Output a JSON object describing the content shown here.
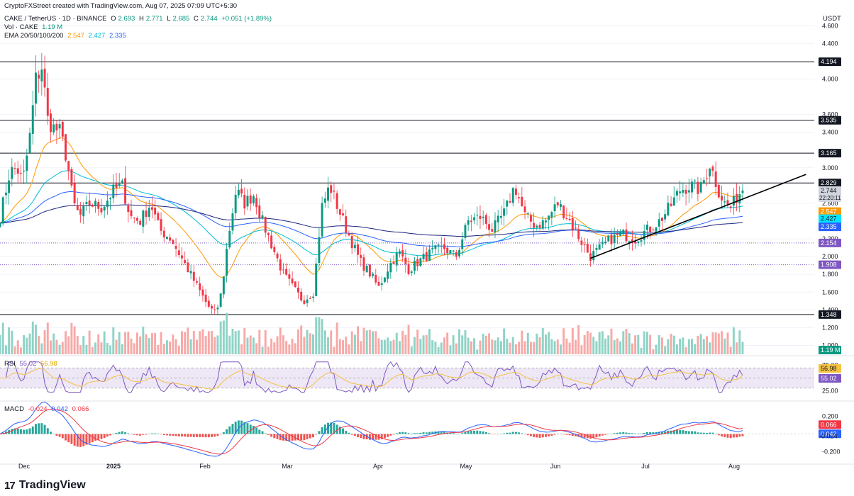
{
  "header": {
    "credit": "CryptoFXStreet created with TradingView.com, Aug 07, 2025 07:09 UTC+5:30",
    "symbol": "CAKE / TetherUS · 1D · BINANCE",
    "open_label": "O",
    "open": "2.693",
    "high_label": "H",
    "high": "2.771",
    "low_label": "L",
    "low": "2.685",
    "close_label": "C",
    "close": "2.744",
    "change": "+0.051 (+1.89%)",
    "vol_label": "Vol · CAKE",
    "vol_value": "1.19 M",
    "ema_label": "EMA 20/50/100/200",
    "ema20": "2.547",
    "ema50": "2.427",
    "ema100": "2.335"
  },
  "quote_unit": "USDT",
  "rsi_panel": {
    "label": "RSI",
    "value": "55.02",
    "ma_value": "56.98"
  },
  "macd_panel": {
    "label": "MACD",
    "hist": "-0.024",
    "macd": "0.042",
    "signal": "0.066"
  },
  "footer": {
    "brand": "TradingView",
    "logo": "17"
  },
  "colors": {
    "up": "#089981",
    "down": "#f23645",
    "ema20": "#ff9800",
    "ema50": "#00bcd4",
    "ema100": "#2962ff",
    "ema200": "#1a237e",
    "rsi": "#7e57c2",
    "rsi_ma": "#f5c242",
    "macd": "#2962ff",
    "signal": "#f23645"
  },
  "chart_data": [
    {
      "type": "candlestick",
      "title": "CAKE / TetherUS · 1D · BINANCE",
      "x_tick_labels": [
        "Dec",
        "2025",
        "Feb",
        "Mar",
        "Apr",
        "May",
        "Jun",
        "Jul",
        "Aug"
      ],
      "y_tick_labels": [
        "4.600",
        "4.400",
        "4.000",
        "3.600",
        "3.400",
        "3.000",
        "2.600",
        "2.200",
        "2.000",
        "1.800",
        "1.600",
        "1.400",
        "1.200",
        "1.000"
      ],
      "y_range": [
        0.9,
        4.65
      ],
      "price_levels": [
        {
          "label": "4.194",
          "value": 4.194,
          "style": "solid",
          "color": "#131722"
        },
        {
          "label": "3.535",
          "value": 3.535,
          "style": "solid",
          "color": "#131722"
        },
        {
          "label": "3.165",
          "value": 3.165,
          "style": "solid",
          "color": "#131722"
        },
        {
          "label": "2.829",
          "value": 2.829,
          "style": "solid",
          "color": "#131722"
        },
        {
          "label": "2.154",
          "value": 2.154,
          "style": "dotted",
          "color": "#7e57c2"
        },
        {
          "label": "1.908",
          "value": 1.908,
          "style": "dotted",
          "color": "#7e57c2"
        },
        {
          "label": "1.348",
          "value": 1.348,
          "style": "solid",
          "color": "#131722"
        }
      ],
      "current_price_tag": {
        "label": "2.744",
        "countdown": "22:20:11"
      },
      "ema_tags": [
        {
          "label": "2.547",
          "value": 2.547,
          "color": "#ff9800"
        },
        {
          "label": "2.427",
          "value": 2.427,
          "color": "#00e5ff"
        },
        {
          "label": "2.335",
          "value": 2.335,
          "color": "#2962ff"
        }
      ],
      "volume_tag": "1.19 M",
      "trendline": [
        {
          "x": 0.725,
          "y": 1.98
        },
        {
          "x": 0.955,
          "y": 2.83
        }
      ],
      "waypoints": [
        {
          "x": 0.0,
          "y": 2.45
        },
        {
          "x": 0.012,
          "y": 2.95
        },
        {
          "x": 0.02,
          "y": 3.0
        },
        {
          "x": 0.028,
          "y": 2.85
        },
        {
          "x": 0.036,
          "y": 3.3
        },
        {
          "x": 0.044,
          "y": 4.0
        },
        {
          "x": 0.052,
          "y": 4.15
        },
        {
          "x": 0.058,
          "y": 3.55
        },
        {
          "x": 0.066,
          "y": 3.45
        },
        {
          "x": 0.074,
          "y": 3.4
        },
        {
          "x": 0.082,
          "y": 3.1
        },
        {
          "x": 0.09,
          "y": 2.6
        },
        {
          "x": 0.098,
          "y": 2.45
        },
        {
          "x": 0.11,
          "y": 2.6
        },
        {
          "x": 0.125,
          "y": 2.55
        },
        {
          "x": 0.14,
          "y": 2.75
        },
        {
          "x": 0.15,
          "y": 2.8
        },
        {
          "x": 0.16,
          "y": 2.45
        },
        {
          "x": 0.172,
          "y": 2.4
        },
        {
          "x": 0.185,
          "y": 2.6
        },
        {
          "x": 0.196,
          "y": 2.3
        },
        {
          "x": 0.21,
          "y": 2.2
        },
        {
          "x": 0.225,
          "y": 1.95
        },
        {
          "x": 0.24,
          "y": 1.7
        },
        {
          "x": 0.255,
          "y": 1.45
        },
        {
          "x": 0.265,
          "y": 1.35
        },
        {
          "x": 0.272,
          "y": 1.6
        },
        {
          "x": 0.28,
          "y": 2.2
        },
        {
          "x": 0.29,
          "y": 2.75
        },
        {
          "x": 0.3,
          "y": 2.6
        },
        {
          "x": 0.312,
          "y": 2.7
        },
        {
          "x": 0.322,
          "y": 2.4
        },
        {
          "x": 0.335,
          "y": 2.1
        },
        {
          "x": 0.348,
          "y": 1.8
        },
        {
          "x": 0.36,
          "y": 1.65
        },
        {
          "x": 0.372,
          "y": 1.5
        },
        {
          "x": 0.385,
          "y": 1.6
        },
        {
          "x": 0.395,
          "y": 2.55
        },
        {
          "x": 0.405,
          "y": 2.8
        },
        {
          "x": 0.415,
          "y": 2.55
        },
        {
          "x": 0.428,
          "y": 2.25
        },
        {
          "x": 0.442,
          "y": 1.95
        },
        {
          "x": 0.455,
          "y": 1.8
        },
        {
          "x": 0.465,
          "y": 1.65
        },
        {
          "x": 0.478,
          "y": 1.9
        },
        {
          "x": 0.49,
          "y": 2.05
        },
        {
          "x": 0.502,
          "y": 1.85
        },
        {
          "x": 0.515,
          "y": 1.95
        },
        {
          "x": 0.53,
          "y": 2.05
        },
        {
          "x": 0.545,
          "y": 2.1
        },
        {
          "x": 0.56,
          "y": 2.0
        },
        {
          "x": 0.575,
          "y": 2.4
        },
        {
          "x": 0.59,
          "y": 2.45
        },
        {
          "x": 0.605,
          "y": 2.3
        },
        {
          "x": 0.62,
          "y": 2.5
        },
        {
          "x": 0.632,
          "y": 2.8
        },
        {
          "x": 0.645,
          "y": 2.45
        },
        {
          "x": 0.658,
          "y": 2.35
        },
        {
          "x": 0.67,
          "y": 2.4
        },
        {
          "x": 0.685,
          "y": 2.6
        },
        {
          "x": 0.7,
          "y": 2.4
        },
        {
          "x": 0.712,
          "y": 2.2
        },
        {
          "x": 0.725,
          "y": 2.0
        },
        {
          "x": 0.738,
          "y": 2.1
        },
        {
          "x": 0.75,
          "y": 2.2
        },
        {
          "x": 0.765,
          "y": 2.25
        },
        {
          "x": 0.78,
          "y": 2.2
        },
        {
          "x": 0.795,
          "y": 2.3
        },
        {
          "x": 0.81,
          "y": 2.4
        },
        {
          "x": 0.822,
          "y": 2.55
        },
        {
          "x": 0.835,
          "y": 2.75
        },
        {
          "x": 0.848,
          "y": 2.8
        },
        {
          "x": 0.86,
          "y": 2.75
        },
        {
          "x": 0.872,
          "y": 3.05
        },
        {
          "x": 0.882,
          "y": 2.75
        },
        {
          "x": 0.89,
          "y": 2.6
        },
        {
          "x": 0.898,
          "y": 2.55
        },
        {
          "x": 0.906,
          "y": 2.7
        },
        {
          "x": 0.912,
          "y": 2.744
        }
      ]
    },
    {
      "type": "line",
      "title": "RSI",
      "y_tick_labels": [
        "75.00",
        "25.00"
      ],
      "y_range": [
        10,
        90
      ],
      "band": [
        30,
        70
      ],
      "series": [
        {
          "name": "RSI",
          "last": 55.02
        },
        {
          "name": "RSI MA",
          "last": 56.98
        }
      ]
    },
    {
      "type": "bar",
      "title": "MACD",
      "y_tick_labels": [
        "0.200",
        "-0.200"
      ],
      "y_range": [
        -0.3,
        0.3
      ],
      "series": [
        {
          "name": "Histogram",
          "last": -0.024
        },
        {
          "name": "MACD",
          "last": 0.042
        },
        {
          "name": "Signal",
          "last": 0.066
        }
      ]
    }
  ]
}
